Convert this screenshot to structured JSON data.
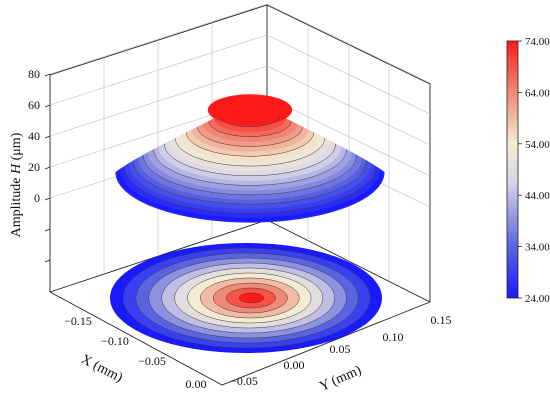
{
  "chart_data": {
    "type": "surface3d",
    "description_axes": {
      "x_label": "X (mm)",
      "y_label": "Y (mm)",
      "z_label_prefix": "Amplitude ",
      "z_label_var": "H",
      "z_label_unit": " (μm)"
    },
    "x_ticks": [
      "-0.15",
      "-0.10",
      "-0.05",
      "0.00"
    ],
    "y_ticks": [
      "-0.05",
      "0.00",
      "0.05",
      "0.10",
      "0.15"
    ],
    "z_ticks": [
      "0",
      "20",
      "40",
      "60",
      "80"
    ],
    "colorbar": {
      "min": 24.0,
      "max": 74.0,
      "ticks": [
        "74.00",
        "64.00",
        "54.00",
        "44.00",
        "34.00",
        "24.00"
      ],
      "colors": {
        "low": "#1a1aff",
        "mid": "#f3ecd2",
        "high": "#ff1a1a"
      }
    },
    "surface": {
      "shape": "dome",
      "peak_amplitude": 74.0,
      "edge_amplitude": 24.0,
      "contour_lines": 10,
      "projection": "filled contour on base plane"
    }
  }
}
